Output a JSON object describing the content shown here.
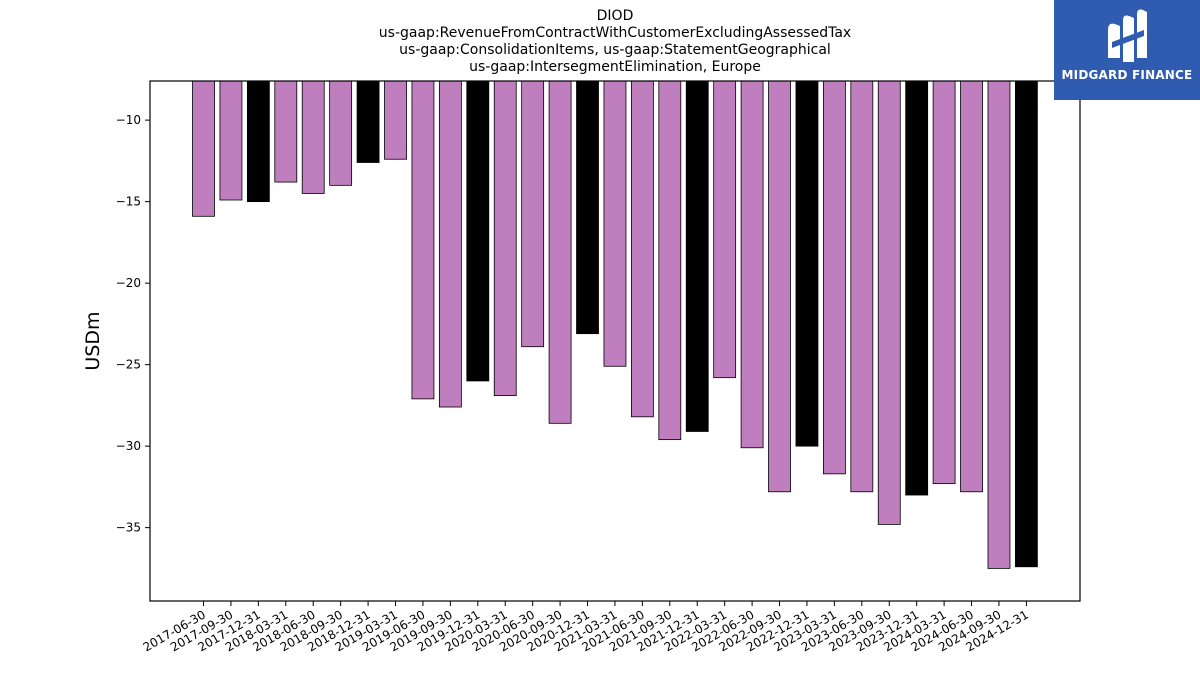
{
  "chart_data": {
    "type": "bar",
    "title_lines": [
      "DIOD",
      "us-gaap:RevenueFromContractWithCustomerExcludingAssessedTax",
      "us-gaap:ConsolidationItems, us-gaap:StatementGeographical",
      "us-gaap:IntersegmentElimination, Europe"
    ],
    "ylabel": "USDm",
    "xlabel": "",
    "ylim": [
      -39.5,
      -7.6
    ],
    "yticks": [
      -10,
      -15,
      -20,
      -25,
      -30,
      -35
    ],
    "ytick_labels": [
      "−10",
      "−15",
      "−20",
      "−25",
      "−30",
      "−35"
    ],
    "grid": false,
    "categories": [
      "2017-06-30",
      "2017-09-30",
      "2017-12-31",
      "2018-03-31",
      "2018-06-30",
      "2018-09-30",
      "2018-12-31",
      "2019-03-31",
      "2019-06-30",
      "2019-09-30",
      "2019-12-31",
      "2020-03-31",
      "2020-06-30",
      "2020-09-30",
      "2020-12-31",
      "2021-03-31",
      "2021-06-30",
      "2021-09-30",
      "2021-12-31",
      "2022-03-31",
      "2022-06-30",
      "2022-09-30",
      "2022-12-31",
      "2023-03-31",
      "2023-06-30",
      "2023-09-30",
      "2023-12-31",
      "2024-03-31",
      "2024-06-30",
      "2024-09-30",
      "2024-12-31"
    ],
    "values": [
      -15.9,
      -14.9,
      -15.0,
      -13.8,
      -14.5,
      -14.0,
      -12.6,
      -12.4,
      -27.1,
      -27.6,
      -26.0,
      -26.9,
      -23.9,
      -28.6,
      -23.1,
      -25.1,
      -28.2,
      -29.6,
      -29.1,
      -25.8,
      -30.1,
      -32.8,
      -30.0,
      -31.7,
      -32.8,
      -34.8,
      -33.0,
      -32.3,
      -32.8,
      -37.5,
      -37.4
    ],
    "colors": [
      "#bf7fbf",
      "#bf7fbf",
      "#000000",
      "#bf7fbf",
      "#bf7fbf",
      "#bf7fbf",
      "#000000",
      "#bf7fbf",
      "#bf7fbf",
      "#bf7fbf",
      "#000000",
      "#bf7fbf",
      "#bf7fbf",
      "#bf7fbf",
      "#000000",
      "#bf7fbf",
      "#bf7fbf",
      "#bf7fbf",
      "#000000",
      "#bf7fbf",
      "#bf7fbf",
      "#bf7fbf",
      "#000000",
      "#bf7fbf",
      "#bf7fbf",
      "#bf7fbf",
      "#000000",
      "#bf7fbf",
      "#bf7fbf",
      "#bf7fbf",
      "#000000"
    ]
  },
  "logo": {
    "text": "MIDGARD FINANCE",
    "icon": "midgard-logo-icon",
    "background": "#2f5bb0"
  }
}
